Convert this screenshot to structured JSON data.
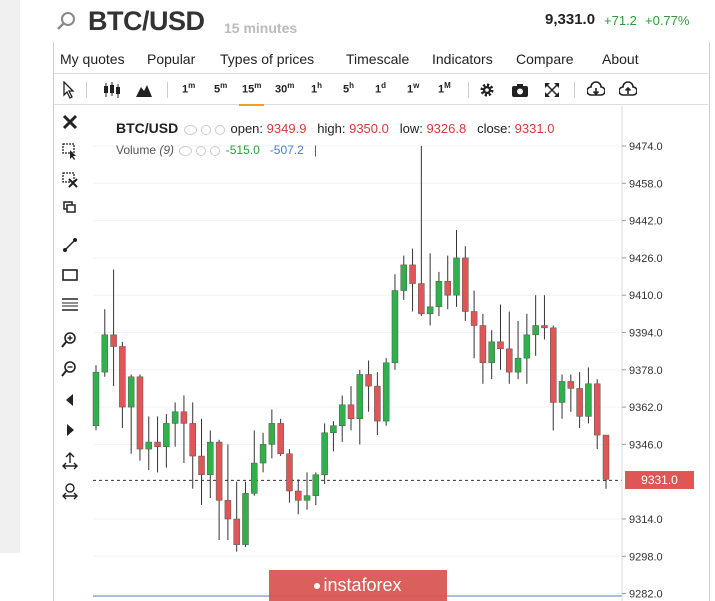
{
  "header": {
    "pair": "BTC/USD",
    "interval": "15 minutes",
    "last": "9,331.0",
    "change": "+71.2",
    "change_pct": "+0.77%"
  },
  "menu": [
    "My quotes",
    "Popular",
    "Types of prices",
    "Timescale",
    "Indicators",
    "Compare",
    "About"
  ],
  "toolbar": {
    "timeframes": [
      {
        "base": "1",
        "sup": "m"
      },
      {
        "base": "5",
        "sup": "m"
      },
      {
        "base": "15",
        "sup": "m"
      },
      {
        "base": "30",
        "sup": "m"
      },
      {
        "base": "1",
        "sup": "h"
      },
      {
        "base": "5",
        "sup": "h"
      },
      {
        "base": "1",
        "sup": "d"
      },
      {
        "base": "1",
        "sup": "w"
      },
      {
        "base": "1",
        "sup": "M"
      }
    ],
    "active_timeframe": "15m",
    "icons": [
      "cursor-icon",
      "candlestick-icon",
      "mountain-icon",
      "gear-icon",
      "camera-icon",
      "fullscreen-icon",
      "download-icon",
      "upload-icon"
    ]
  },
  "tools": [
    "close-icon",
    "select-icon",
    "crossout-icon",
    "copy-icon",
    "line-icon",
    "rectangle-icon",
    "hlines-icon",
    "zoom-in-icon",
    "zoom-out-icon",
    "scroll-left-icon",
    "scroll-right-icon",
    "drag-icon",
    "reset-icon"
  ],
  "legend": {
    "symbol": "BTC/USD",
    "open_label": "open:",
    "open": "9349.9",
    "high_label": "high:",
    "high": "9350.0",
    "low_label": "low:",
    "low": "9326.8",
    "close_label": "close:",
    "close": "9331.0"
  },
  "volume": {
    "label": "Volume",
    "period": "(9)",
    "value1": "-515.0",
    "value2": "-507.2",
    "sep": "|"
  },
  "axis": {
    "ticks": [
      "9474.0",
      "9458.0",
      "9442.0",
      "9426.0",
      "9410.0",
      "9394.0",
      "9378.0",
      "9362.0",
      "9346.0",
      "9314.0",
      "9298.0",
      "9282.0"
    ]
  },
  "price_tag": "9331.0",
  "watermark": "instaforex",
  "colors": {
    "up": "#2fb04a",
    "down": "#e05555",
    "accent": "#f0a020"
  },
  "chart_data": {
    "type": "candlestick",
    "ylim": [
      9280,
      9484
    ],
    "candles": [
      {
        "o": 9354,
        "h": 9380,
        "l": 9352,
        "c": 9377
      },
      {
        "o": 9377,
        "h": 9404,
        "l": 9375,
        "c": 9393
      },
      {
        "o": 9393,
        "h": 9421,
        "l": 9371,
        "c": 9388
      },
      {
        "o": 9388,
        "h": 9390,
        "l": 9353,
        "c": 9362
      },
      {
        "o": 9362,
        "h": 9376,
        "l": 9342,
        "c": 9375
      },
      {
        "o": 9375,
        "h": 9376,
        "l": 9339,
        "c": 9344
      },
      {
        "o": 9344,
        "h": 9358,
        "l": 9335,
        "c": 9347
      },
      {
        "o": 9347,
        "h": 9358,
        "l": 9334,
        "c": 9345
      },
      {
        "o": 9345,
        "h": 9359,
        "l": 9336,
        "c": 9355
      },
      {
        "o": 9355,
        "h": 9364,
        "l": 9345,
        "c": 9360
      },
      {
        "o": 9360,
        "h": 9367,
        "l": 9338,
        "c": 9355
      },
      {
        "o": 9355,
        "h": 9364,
        "l": 9327,
        "c": 9341
      },
      {
        "o": 9341,
        "h": 9357,
        "l": 9320,
        "c": 9333
      },
      {
        "o": 9333,
        "h": 9352,
        "l": 9323,
        "c": 9347
      },
      {
        "o": 9347,
        "h": 9348,
        "l": 9305,
        "c": 9322
      },
      {
        "o": 9322,
        "h": 9346,
        "l": 9305,
        "c": 9314
      },
      {
        "o": 9314,
        "h": 9330,
        "l": 9300,
        "c": 9303
      },
      {
        "o": 9303,
        "h": 9330,
        "l": 9302,
        "c": 9325
      },
      {
        "o": 9325,
        "h": 9352,
        "l": 9324,
        "c": 9338
      },
      {
        "o": 9338,
        "h": 9351,
        "l": 9334,
        "c": 9346
      },
      {
        "o": 9346,
        "h": 9361,
        "l": 9340,
        "c": 9355
      },
      {
        "o": 9355,
        "h": 9357,
        "l": 9341,
        "c": 9342
      },
      {
        "o": 9342,
        "h": 9344,
        "l": 9321,
        "c": 9326
      },
      {
        "o": 9326,
        "h": 9331,
        "l": 9316,
        "c": 9322
      },
      {
        "o": 9322,
        "h": 9334,
        "l": 9318,
        "c": 9324
      },
      {
        "o": 9324,
        "h": 9334,
        "l": 9320,
        "c": 9333
      },
      {
        "o": 9333,
        "h": 9355,
        "l": 9329,
        "c": 9351
      },
      {
        "o": 9351,
        "h": 9356,
        "l": 9343,
        "c": 9354
      },
      {
        "o": 9354,
        "h": 9367,
        "l": 9347,
        "c": 9363
      },
      {
        "o": 9363,
        "h": 9371,
        "l": 9352,
        "c": 9357
      },
      {
        "o": 9357,
        "h": 9378,
        "l": 9346,
        "c": 9376
      },
      {
        "o": 9376,
        "h": 9382,
        "l": 9360,
        "c": 9371
      },
      {
        "o": 9371,
        "h": 9377,
        "l": 9350,
        "c": 9356
      },
      {
        "o": 9356,
        "h": 9383,
        "l": 9354,
        "c": 9381
      },
      {
        "o": 9381,
        "h": 9419,
        "l": 9378,
        "c": 9412
      },
      {
        "o": 9412,
        "h": 9427,
        "l": 9408,
        "c": 9423
      },
      {
        "o": 9423,
        "h": 9430,
        "l": 9403,
        "c": 9415
      },
      {
        "o": 9415,
        "h": 9474,
        "l": 9401,
        "c": 9402
      },
      {
        "o": 9402,
        "h": 9428,
        "l": 9397,
        "c": 9405
      },
      {
        "o": 9405,
        "h": 9420,
        "l": 9401,
        "c": 9416
      },
      {
        "o": 9416,
        "h": 9427,
        "l": 9404,
        "c": 9410
      },
      {
        "o": 9410,
        "h": 9438,
        "l": 9405,
        "c": 9426
      },
      {
        "o": 9426,
        "h": 9431,
        "l": 9399,
        "c": 9403
      },
      {
        "o": 9403,
        "h": 9412,
        "l": 9383,
        "c": 9397
      },
      {
        "o": 9397,
        "h": 9402,
        "l": 9372,
        "c": 9381
      },
      {
        "o": 9381,
        "h": 9395,
        "l": 9374,
        "c": 9390
      },
      {
        "o": 9390,
        "h": 9406,
        "l": 9378,
        "c": 9387
      },
      {
        "o": 9387,
        "h": 9403,
        "l": 9372,
        "c": 9377
      },
      {
        "o": 9377,
        "h": 9399,
        "l": 9374,
        "c": 9383
      },
      {
        "o": 9383,
        "h": 9402,
        "l": 9372,
        "c": 9393
      },
      {
        "o": 9393,
        "h": 9410,
        "l": 9384,
        "c": 9397
      },
      {
        "o": 9397,
        "h": 9410,
        "l": 9391,
        "c": 9396
      },
      {
        "o": 9396,
        "h": 9397,
        "l": 9352,
        "c": 9364
      },
      {
        "o": 9364,
        "h": 9376,
        "l": 9357,
        "c": 9373
      },
      {
        "o": 9373,
        "h": 9376,
        "l": 9360,
        "c": 9370
      },
      {
        "o": 9370,
        "h": 9377,
        "l": 9353,
        "c": 9358
      },
      {
        "o": 9358,
        "h": 9379,
        "l": 9355,
        "c": 9372
      },
      {
        "o": 9372,
        "h": 9374,
        "l": 9344,
        "c": 9350
      },
      {
        "o": 9350,
        "h": 9350,
        "l": 9327,
        "c": 9331
      }
    ]
  }
}
